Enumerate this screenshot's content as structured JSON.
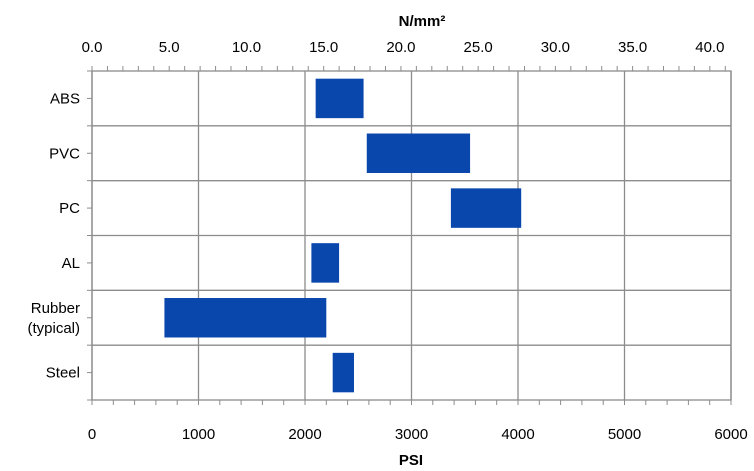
{
  "chart_data": {
    "type": "bar",
    "orientation": "horizontal-range",
    "title": "",
    "categories": [
      [
        "ABS"
      ],
      [
        "PVC"
      ],
      [
        "PC"
      ],
      [
        "AL"
      ],
      [
        "Rubber",
        "(typical)"
      ],
      [
        "Steel"
      ]
    ],
    "series": [
      {
        "color": "#0a47ad",
        "ranges": [
          [
            2100,
            2550
          ],
          [
            2580,
            3550
          ],
          [
            3370,
            4030
          ],
          [
            2060,
            2320
          ],
          [
            680,
            2200
          ],
          [
            2260,
            2460
          ]
        ]
      }
    ],
    "x_bottom": {
      "label": "PSI",
      "range": [
        0,
        6000
      ],
      "ticks": [
        "0",
        "1000",
        "2000",
        "3000",
        "4000",
        "5000",
        "6000"
      ]
    },
    "x_top": {
      "label": "N/mm²",
      "range": [
        0,
        41.37
      ],
      "ticks": [
        "0.0",
        "5.0",
        "10.0",
        "15.0",
        "20.0",
        "25.0",
        "30.0",
        "35.0",
        "40.0"
      ]
    },
    "grid": true,
    "legend": "none"
  }
}
